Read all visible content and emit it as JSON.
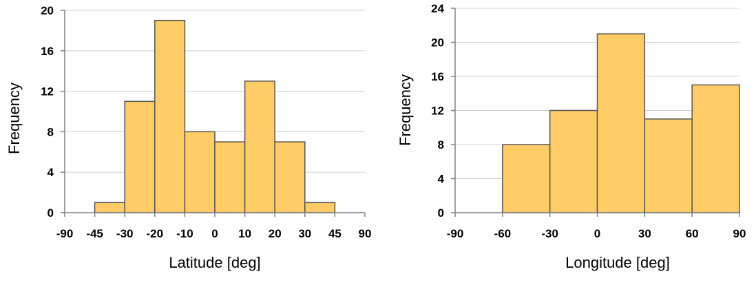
{
  "chart_data": [
    {
      "type": "bar",
      "title": "",
      "xlabel": "Latitude [deg]",
      "ylabel": "Frequency",
      "x_ticks": [
        "-90",
        "-45",
        "-30",
        "-20",
        "-10",
        "0",
        "10",
        "20",
        "30",
        "45",
        "90"
      ],
      "y_ticks": [
        "0",
        "4",
        "8",
        "12",
        "16",
        "20"
      ],
      "ylim": [
        0,
        20
      ],
      "grid": true,
      "bars": [
        {
          "from": "-45",
          "to": "-30",
          "value": 1
        },
        {
          "from": "-30",
          "to": "-20",
          "value": 11
        },
        {
          "from": "-20",
          "to": "-10",
          "value": 19
        },
        {
          "from": "-10",
          "to": "0",
          "value": 8
        },
        {
          "from": "0",
          "to": "10",
          "value": 7
        },
        {
          "from": "10",
          "to": "20",
          "value": 13
        },
        {
          "from": "20",
          "to": "30",
          "value": 7
        },
        {
          "from": "30",
          "to": "45",
          "value": 1
        }
      ],
      "bar_color": "#FFCC66",
      "bar_edge_color": "#555555",
      "grid_color": "#D0D0D0"
    },
    {
      "type": "bar",
      "title": "",
      "xlabel": "Longitude [deg]",
      "ylabel": "Frequency",
      "x_ticks": [
        "-90",
        "-60",
        "-30",
        "0",
        "30",
        "60",
        "90"
      ],
      "y_ticks": [
        "0",
        "4",
        "8",
        "12",
        "16",
        "20",
        "24"
      ],
      "ylim": [
        0,
        24
      ],
      "grid": true,
      "bars": [
        {
          "from": "-60",
          "to": "-30",
          "value": 8
        },
        {
          "from": "-30",
          "to": "0",
          "value": 12
        },
        {
          "from": "0",
          "to": "30",
          "value": 21
        },
        {
          "from": "30",
          "to": "60",
          "value": 11
        },
        {
          "from": "60",
          "to": "90",
          "value": 15
        }
      ],
      "bar_color": "#FFCC66",
      "bar_edge_color": "#555555",
      "grid_color": "#D0D0D0"
    }
  ]
}
